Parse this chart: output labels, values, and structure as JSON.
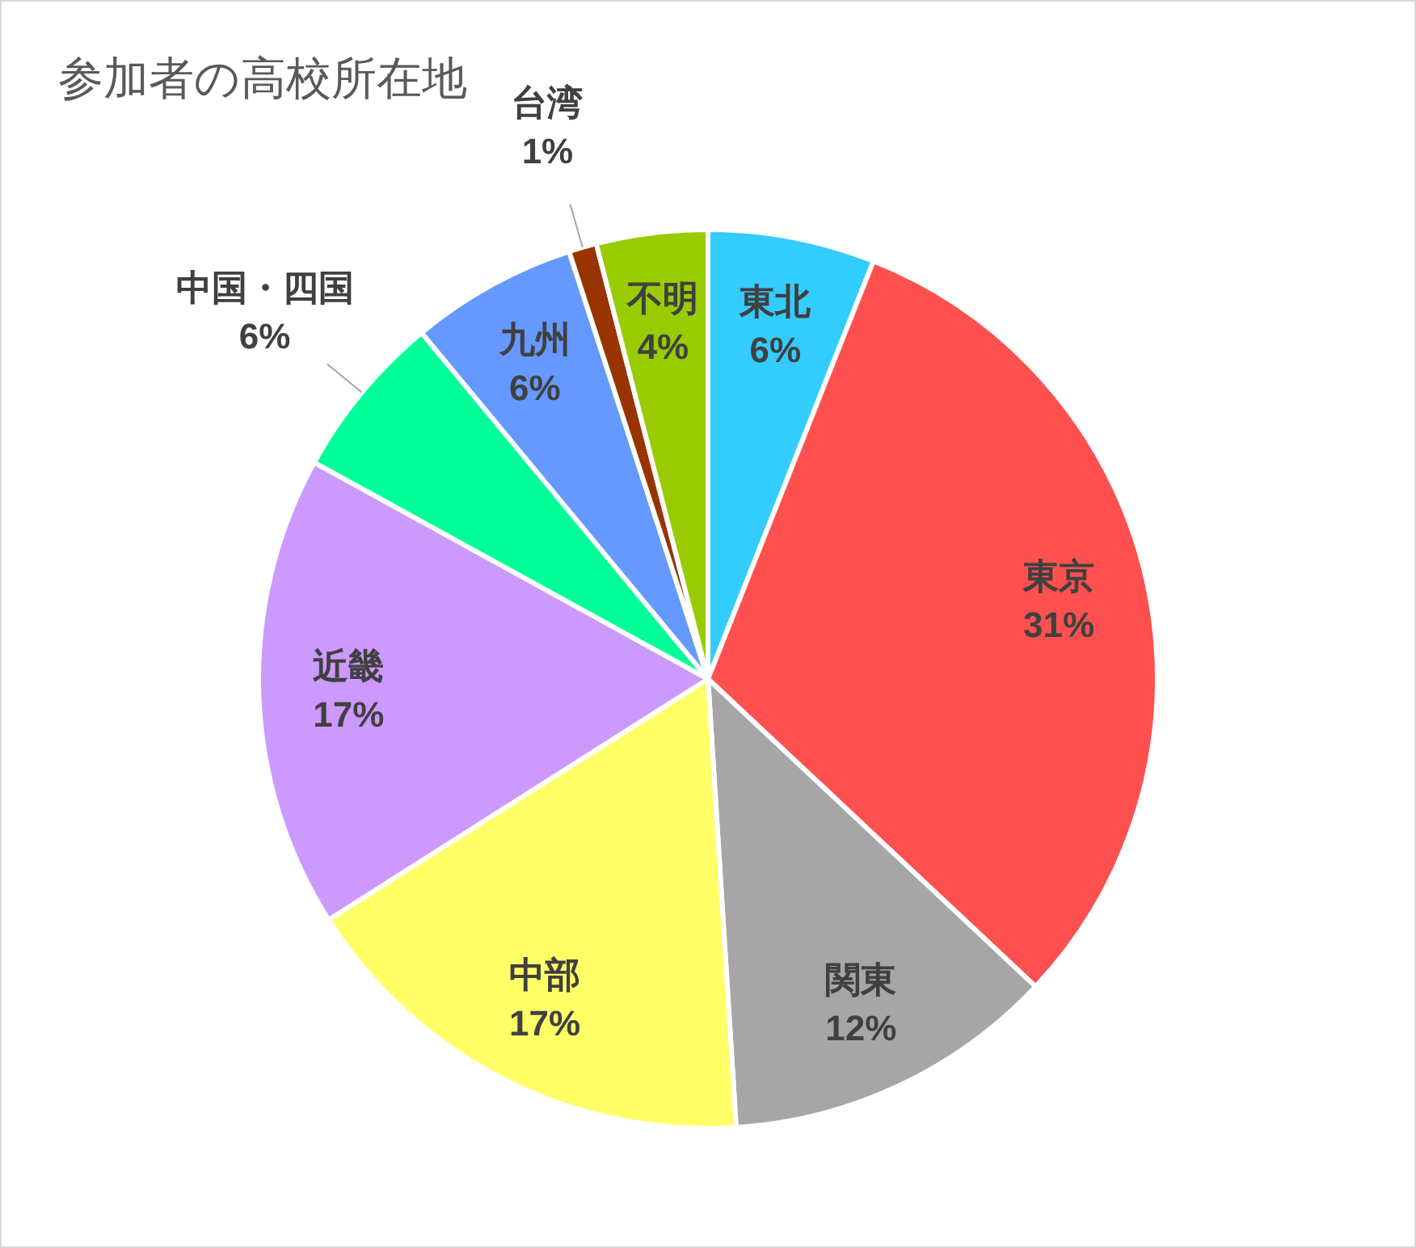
{
  "chart_data": {
    "type": "pie",
    "title": "参加者の高校所在地",
    "categories": [
      "東北",
      "東京",
      "関東",
      "中部",
      "近畿",
      "中国・四国",
      "九州",
      "台湾",
      "不明"
    ],
    "values": [
      6,
      31,
      12,
      17,
      17,
      6,
      6,
      1,
      4
    ],
    "colors": [
      "#33ccff",
      "#ff5050",
      "#a6a6a6",
      "#ffff66",
      "#cc99ff",
      "#00ff99",
      "#6699ff",
      "#993300",
      "#99cc00"
    ],
    "value_labels": [
      "6%",
      "31%",
      "12%",
      "17%",
      "17%",
      "6%",
      "6%",
      "1%",
      "4%"
    ],
    "legend": false
  }
}
